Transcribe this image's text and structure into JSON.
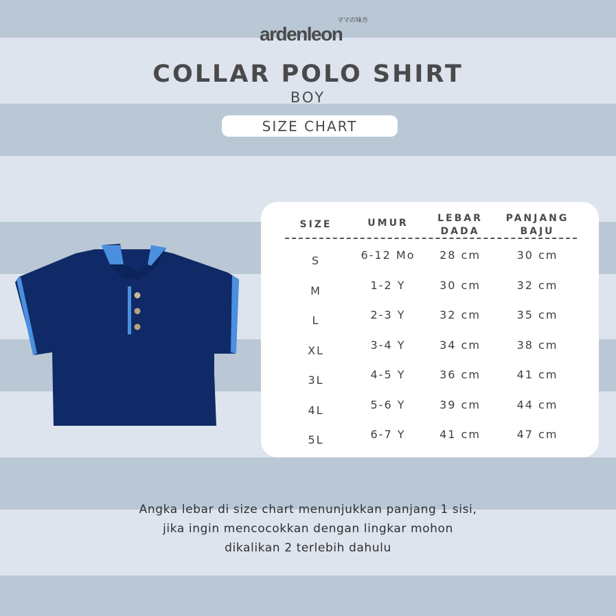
{
  "brand": {
    "name": "ardenleon",
    "tagline": "ママの味方"
  },
  "title": "COLLAR POLO SHIRT",
  "subtitle": "BOY",
  "badge": "SIZE CHART",
  "colors": {
    "band_dark": "#bac8d6",
    "band_light": "#dee4ed",
    "shirt": "#0f2a66",
    "trim": "#4a8fe0"
  },
  "table": {
    "headers": [
      {
        "line1": "SIZE",
        "line2": ""
      },
      {
        "line1": "UMUR",
        "line2": ""
      },
      {
        "line1": "LEBAR",
        "line2": "DADA"
      },
      {
        "line1": "PANJANG",
        "line2": "BAJU"
      }
    ],
    "rows": [
      [
        "S",
        "6-12 Mo",
        "28 cm",
        "30 cm"
      ],
      [
        "M",
        "1-2 Y",
        "30 cm",
        "32 cm"
      ],
      [
        "L",
        "2-3 Y",
        "32 cm",
        "35 cm"
      ],
      [
        "XL",
        "3-4 Y",
        "34 cm",
        "38 cm"
      ],
      [
        "3L",
        "4-5 Y",
        "36 cm",
        "41 cm"
      ],
      [
        "4L",
        "5-6 Y",
        "39 cm",
        "44 cm"
      ],
      [
        "5L",
        "6-7 Y",
        "41 cm",
        "47 cm"
      ]
    ]
  },
  "note": {
    "line1": "Angka lebar di size chart menunjukkan panjang 1 sisi,",
    "line2": "jika ingin mencocokkan dengan lingkar mohon",
    "line3": "dikalikan 2 terlebih dahulu"
  }
}
